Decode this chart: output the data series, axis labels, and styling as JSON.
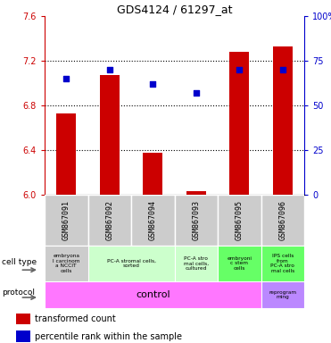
{
  "title": "GDS4124 / 61297_at",
  "samples": [
    "GSM867091",
    "GSM867092",
    "GSM867094",
    "GSM867093",
    "GSM867095",
    "GSM867096"
  ],
  "transformed_counts": [
    6.73,
    7.07,
    6.38,
    6.03,
    7.28,
    7.33
  ],
  "percentile_ranks": [
    65,
    70,
    62,
    57,
    70,
    70
  ],
  "ylim_left": [
    6.0,
    7.6
  ],
  "ylim_right": [
    0,
    100
  ],
  "yticks_left": [
    6.0,
    6.4,
    6.8,
    7.2,
    7.6
  ],
  "yticks_right": [
    0,
    25,
    50,
    75,
    100
  ],
  "ytick_labels_right": [
    "0",
    "25",
    "50",
    "75",
    "100%"
  ],
  "bar_color": "#cc0000",
  "dot_color": "#0000cc",
  "bar_width": 0.45,
  "cell_types": [
    {
      "label": "embryona\nl carcinom\na NCCIT\ncells",
      "span": [
        0,
        1
      ],
      "color": "#cccccc"
    },
    {
      "label": "PC-A stromal cells,\nsorted",
      "span": [
        1,
        3
      ],
      "color": "#ccffcc"
    },
    {
      "label": "PC-A stro\nmal cells,\ncultured",
      "span": [
        3,
        4
      ],
      "color": "#ccffcc"
    },
    {
      "label": "embryoni\nc stem\ncells",
      "span": [
        4,
        5
      ],
      "color": "#66ff66"
    },
    {
      "label": "IPS cells\nfrom\nPC-A stro\nmal cells",
      "span": [
        5,
        6
      ],
      "color": "#66ff66"
    }
  ],
  "protocol_control": {
    "label": "control",
    "span": [
      0,
      5
    ],
    "color": "#ff77ff"
  },
  "protocol_reprog": {
    "label": "reprogram\nming",
    "span": [
      5,
      6
    ],
    "color": "#bb88ff"
  },
  "left_axis_color": "#cc0000",
  "right_axis_color": "#0000cc",
  "sample_bg_color": "#cccccc",
  "sample_border_color": "#ffffff"
}
